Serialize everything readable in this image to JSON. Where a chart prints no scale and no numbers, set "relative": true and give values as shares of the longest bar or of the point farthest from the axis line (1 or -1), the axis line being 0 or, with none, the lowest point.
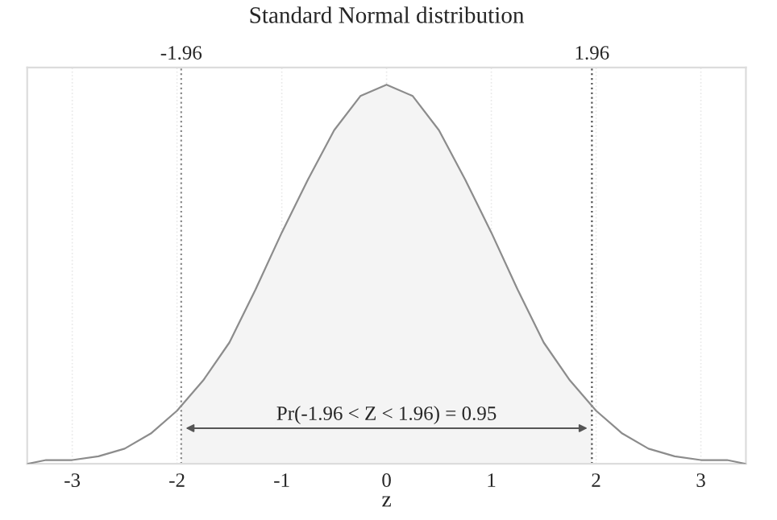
{
  "chart_data": {
    "type": "line",
    "title": "Standard Normal distribution",
    "xlabel": "z",
    "relative": true,
    "xlim": [
      -3.43,
      3.43
    ],
    "xticks": [
      -3,
      -2,
      -1,
      0,
      1,
      2,
      3
    ],
    "grid": "x",
    "legend": false,
    "series": [
      {
        "type": "area",
        "color": "#f4f4f4",
        "x": [
          -1.96,
          -1.75,
          -1.5,
          -1.25,
          -1,
          -0.75,
          -0.5,
          -0.25,
          0,
          0.25,
          0.5,
          0.75,
          1,
          1.25,
          1.5,
          1.75,
          1.96
        ],
        "values": [
          0.15,
          0.22,
          0.32,
          0.46,
          0.61,
          0.75,
          0.88,
          0.97,
          1,
          0.97,
          0.88,
          0.75,
          0.61,
          0.46,
          0.32,
          0.22,
          0.15
        ]
      },
      {
        "color": "#8c8c8c",
        "x": [
          -3.43,
          -3.25,
          -3,
          -2.75,
          -2.5,
          -2.25,
          -2,
          -1.75,
          -1.5,
          -1.25,
          -1,
          -0.75,
          -0.5,
          -0.25,
          0,
          0.25,
          0.5,
          0.75,
          1,
          1.25,
          1.5,
          1.75,
          2,
          2.25,
          2.5,
          2.75,
          3,
          3.25,
          3.43
        ],
        "values": [
          0.0,
          0.01,
          0.01,
          0.02,
          0.04,
          0.08,
          0.14,
          0.22,
          0.32,
          0.46,
          0.61,
          0.75,
          0.88,
          0.97,
          1,
          0.97,
          0.88,
          0.75,
          0.61,
          0.46,
          0.32,
          0.22,
          0.14,
          0.08,
          0.04,
          0.02,
          0.01,
          0.01,
          0.0
        ]
      }
    ],
    "ref_lines": [
      {
        "axis": "x",
        "value": -1.96,
        "label": "-1.96",
        "color": "#8a8a8a",
        "line_style": "dotted"
      },
      {
        "axis": "x",
        "value": 1.96,
        "label": "1.96",
        "color": "#555555",
        "line_style": "dotted"
      }
    ],
    "annotations": [
      "Pr(-1.96 < Z < 1.96) = 0.95"
    ]
  }
}
